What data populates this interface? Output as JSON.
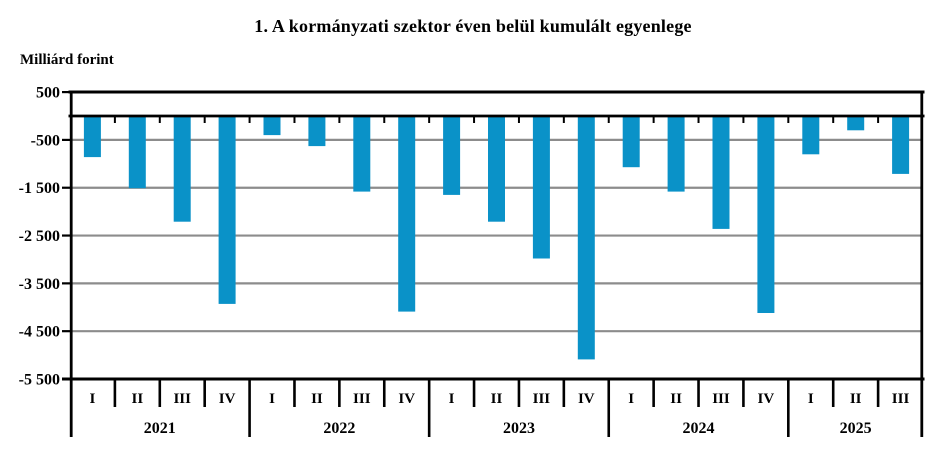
{
  "title": "1. A kormányzati szektor éven belül kumulált egyenlege",
  "chart_data": {
    "type": "bar",
    "title": "1. A kormányzati szektor éven belül kumulált egyenlege",
    "xlabel": "",
    "ylabel": "Milliárd forint",
    "ylim": [
      -5500,
      500
    ],
    "grid": true,
    "legend": false,
    "bar_color": "#0a92c8",
    "grid_color": "#8c8c8c",
    "axis_color": "#000000",
    "y_ticks": [
      500,
      -500,
      -1500,
      -2500,
      -3500,
      -4500,
      -5500
    ],
    "y_tick_labels": [
      "500",
      "-500",
      "-1 500",
      "-2 500",
      "-3 500",
      "-4 500",
      "-5 500"
    ],
    "years": [
      {
        "year": "2021",
        "quarters": [
          "I",
          "II",
          "III",
          "IV"
        ],
        "values": [
          -860,
          -1510,
          -2210,
          -3930
        ]
      },
      {
        "year": "2022",
        "quarters": [
          "I",
          "II",
          "III",
          "IV"
        ],
        "values": [
          -400,
          -630,
          -1580,
          -4090
        ]
      },
      {
        "year": "2023",
        "quarters": [
          "I",
          "II",
          "III",
          "IV"
        ],
        "values": [
          -1650,
          -2210,
          -2980,
          -5090
        ]
      },
      {
        "year": "2024",
        "quarters": [
          "I",
          "II",
          "III",
          "IV"
        ],
        "values": [
          -1070,
          -1580,
          -2360,
          -4120
        ]
      },
      {
        "year": "2025",
        "quarters": [
          "I",
          "II",
          "III"
        ],
        "values": [
          -800,
          -300,
          -1210
        ]
      }
    ]
  }
}
